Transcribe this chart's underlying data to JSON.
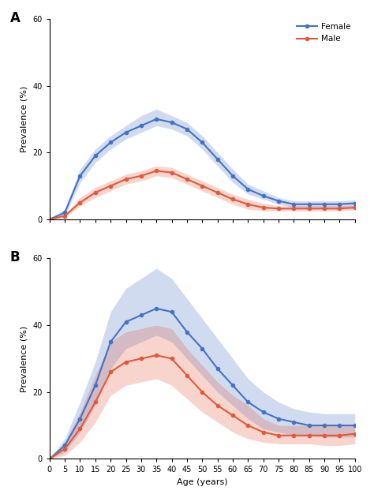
{
  "ages": [
    0,
    5,
    10,
    15,
    20,
    25,
    30,
    35,
    40,
    45,
    50,
    55,
    60,
    65,
    70,
    75,
    80,
    85,
    90,
    95,
    100
  ],
  "panel_A": {
    "female_mean": [
      0,
      2,
      13,
      19,
      23,
      26,
      28,
      30,
      29,
      27,
      23,
      18,
      13,
      9,
      7,
      5.5,
      4.5,
      4.5,
      4.5,
      4.5,
      4.8
    ],
    "female_lo": [
      0,
      1,
      11,
      17,
      21,
      24,
      26,
      28,
      27,
      25,
      21,
      16,
      11,
      7.5,
      6,
      4.5,
      3.5,
      3.5,
      3.5,
      3.5,
      3.8
    ],
    "female_hi": [
      0,
      3,
      15,
      21,
      25,
      28,
      31,
      33,
      31,
      29,
      25,
      20,
      15,
      10.5,
      8.5,
      6.5,
      5.5,
      5.5,
      5.5,
      5.5,
      5.8
    ],
    "male_mean": [
      0,
      1,
      5,
      8,
      10,
      12,
      13,
      14.5,
      14,
      12,
      10,
      8,
      6,
      4.5,
      3.5,
      3.2,
      3.2,
      3.2,
      3.2,
      3.2,
      3.5
    ],
    "male_lo": [
      0,
      0.5,
      4,
      6.5,
      8.5,
      10.5,
      11.5,
      13,
      12.5,
      10.5,
      8.5,
      6.5,
      4.5,
      3,
      2.5,
      2.5,
      2.5,
      2.5,
      2.5,
      2.5,
      2.8
    ],
    "male_hi": [
      0,
      1.5,
      6.5,
      9.5,
      11.5,
      13.5,
      14.5,
      16,
      15.5,
      13.5,
      11.5,
      9.5,
      7.5,
      6,
      4.8,
      4,
      4,
      4,
      4,
      4,
      4.2
    ]
  },
  "panel_B": {
    "female_mean": [
      0,
      4,
      12,
      22,
      35,
      41,
      43,
      45,
      44,
      38,
      33,
      27,
      22,
      17,
      14,
      12,
      11,
      10,
      10,
      10,
      10
    ],
    "female_lo": [
      0,
      2,
      8,
      16,
      27,
      33,
      35,
      37,
      35,
      30,
      25,
      20,
      16,
      12,
      9,
      8,
      7,
      7,
      6.5,
      6.5,
      6.5
    ],
    "female_hi": [
      0,
      6,
      17,
      29,
      44,
      51,
      54,
      57,
      54,
      48,
      42,
      36,
      30,
      24,
      20,
      17,
      15,
      14,
      13.5,
      13.5,
      13.5
    ],
    "male_mean": [
      0,
      3,
      9,
      17,
      26,
      29,
      30,
      31,
      30,
      25,
      20,
      16,
      13,
      10,
      8,
      7,
      7,
      7,
      7,
      7,
      7.5
    ],
    "male_lo": [
      0,
      1,
      5,
      11,
      19,
      22,
      23,
      24,
      22,
      18,
      14,
      11,
      8,
      6,
      5,
      4.5,
      4.5,
      4.5,
      4,
      4,
      4.5
    ],
    "male_hi": [
      0,
      5,
      14,
      25,
      35,
      38,
      39,
      40,
      39,
      33,
      28,
      23,
      19,
      16,
      12,
      10,
      10,
      10,
      10,
      10,
      10.5
    ]
  },
  "female_color": "#4472C4",
  "male_color": "#E05A3A",
  "female_fill_alpha": 0.25,
  "male_fill_alpha": 0.25,
  "ylabel": "Prevalence (%)",
  "xlabel": "Age (years)",
  "ylim": [
    0,
    60
  ],
  "yticks": [
    0,
    20,
    40,
    60
  ],
  "xticks": [
    0,
    5,
    10,
    15,
    20,
    25,
    30,
    35,
    40,
    45,
    50,
    55,
    60,
    65,
    70,
    75,
    80,
    85,
    90,
    95,
    100
  ],
  "xtick_labels": [
    "0",
    "5",
    "10",
    "15",
    "20",
    "25",
    "30",
    "35",
    "40",
    "45",
    "50",
    "55",
    "60",
    "65",
    "70",
    "75",
    "80",
    "85",
    "90",
    "95",
    "100"
  ],
  "label_A": "A",
  "label_B": "B",
  "legend_female": "Female",
  "legend_male": "Male",
  "bg_color": "#ffffff",
  "line_width": 1.5,
  "marker": "o",
  "marker_size": 3
}
